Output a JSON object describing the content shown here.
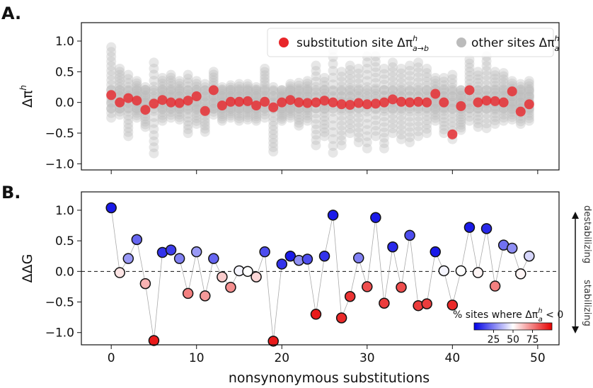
{
  "figure": {
    "panel_a_label": "A.",
    "panel_b_label": "B.",
    "xlabel": "nonsynonymous substitutions"
  },
  "chart_data": [
    {
      "type": "scatter",
      "panel": "A.",
      "ylabel": "Δπ^h",
      "ylim": [
        -1.1,
        1.3
      ],
      "xlim": [
        -3.5,
        52.5
      ],
      "yticks": [
        -1.0,
        -0.5,
        0.0,
        0.5,
        1.0
      ],
      "ytick_labels": [
        "−1.0",
        "−0.5",
        "0.0",
        "0.5",
        "1.0"
      ],
      "grid": false,
      "legend_placement": "top-right",
      "colors": {
        "substitution": "#e8262a",
        "other": "#bbbbbb"
      },
      "legend": [
        {
          "name": "substitution site Δπ^h_{a→b}",
          "text_main": "substitution site Δπ",
          "sup": "h",
          "sub": "a→b",
          "color": "#e8262a"
        },
        {
          "name": "other sites Δπ^h_a",
          "text_main": "other sites Δπ",
          "sup": "h",
          "sub": "a",
          "color": "#bbbbbb"
        }
      ],
      "series": [
        {
          "name": "substitution site Δπ^h_{a→b}",
          "x": [
            0,
            1,
            2,
            3,
            4,
            5,
            6,
            7,
            8,
            9,
            10,
            11,
            12,
            13,
            14,
            15,
            16,
            17,
            18,
            19,
            20,
            21,
            22,
            23,
            24,
            25,
            26,
            27,
            28,
            29,
            30,
            31,
            32,
            33,
            34,
            35,
            36,
            37,
            38,
            39,
            40,
            41,
            42,
            43,
            44,
            45,
            46,
            47,
            48,
            49
          ],
          "y": [
            0.12,
            0.0,
            0.07,
            0.03,
            -0.12,
            -0.02,
            0.04,
            0.0,
            -0.01,
            0.03,
            0.1,
            -0.14,
            0.2,
            -0.05,
            0.01,
            0.01,
            0.02,
            -0.05,
            0.01,
            -0.08,
            0.0,
            0.04,
            0.0,
            -0.01,
            0.0,
            0.03,
            0.0,
            -0.03,
            -0.04,
            -0.01,
            -0.03,
            -0.02,
            0.0,
            0.05,
            0.01,
            0.0,
            0.01,
            0.0,
            0.14,
            0.0,
            -0.52,
            -0.06,
            0.2,
            0.0,
            0.03,
            0.02,
            0.0,
            0.18,
            -0.15,
            -0.03
          ]
        },
        {
          "name": "other sites Δπ^h_a",
          "ranges_description": "per-substitution min/max of other-site values",
          "x": [
            0,
            1,
            2,
            3,
            4,
            5,
            6,
            7,
            8,
            9,
            10,
            11,
            12,
            13,
            14,
            15,
            16,
            17,
            18,
            19,
            20,
            21,
            22,
            23,
            24,
            25,
            26,
            27,
            28,
            29,
            30,
            31,
            32,
            33,
            34,
            35,
            36,
            37,
            38,
            39,
            40,
            41,
            42,
            43,
            44,
            45,
            46,
            47,
            48,
            49
          ],
          "ymin": [
            -0.25,
            -0.2,
            -0.55,
            -0.25,
            -0.4,
            -0.83,
            -0.3,
            -0.25,
            -0.28,
            -0.5,
            -0.35,
            -0.48,
            -0.2,
            -0.3,
            -0.25,
            -0.3,
            -0.28,
            -0.3,
            -0.25,
            -0.8,
            -0.3,
            -0.25,
            -0.38,
            -0.3,
            -0.7,
            -0.55,
            -0.82,
            -0.7,
            -0.5,
            -0.65,
            -0.75,
            -0.55,
            -0.75,
            -0.5,
            -0.6,
            -0.65,
            -0.55,
            -0.5,
            -0.3,
            -0.5,
            -0.6,
            -0.45,
            -0.3,
            -0.4,
            -0.42,
            -0.35,
            -0.3,
            -0.28,
            -0.35,
            -0.3
          ],
          "ymax": [
            0.9,
            0.55,
            0.45,
            0.35,
            0.25,
            0.65,
            0.4,
            0.45,
            0.35,
            0.45,
            0.35,
            0.3,
            0.5,
            0.25,
            0.28,
            0.3,
            0.3,
            0.25,
            0.55,
            0.25,
            0.2,
            0.3,
            0.32,
            0.35,
            0.6,
            0.4,
            0.85,
            0.5,
            0.6,
            0.55,
            0.75,
            0.75,
            0.55,
            0.65,
            0.55,
            0.6,
            0.65,
            0.55,
            0.4,
            0.4,
            0.45,
            0.2,
            0.7,
            0.5,
            0.75,
            0.5,
            0.48,
            0.35,
            0.3,
            0.35
          ]
        }
      ]
    },
    {
      "type": "scatter",
      "panel": "B.",
      "ylabel": "ΔΔG",
      "ylim": [
        -1.2,
        1.3
      ],
      "xlim": [
        -3.5,
        52.5
      ],
      "xticks": [
        0,
        10,
        20,
        30,
        40,
        50
      ],
      "xtick_labels": [
        "0",
        "10",
        "20",
        "30",
        "40",
        "50"
      ],
      "yticks": [
        -1.0,
        -0.5,
        0.0,
        0.5,
        1.0
      ],
      "ytick_labels": [
        "−1.0",
        "−0.5",
        "0.0",
        "0.5",
        "1.0"
      ],
      "grid": false,
      "reference_line": 0.0,
      "annotations": {
        "up": "destabilizing",
        "down": "stabilizing"
      },
      "colorbar": {
        "label": "% sites where Δπ^h_a < 0",
        "label_main": "% sites where Δπ",
        "label_sup": "h",
        "label_sub": "a",
        "label_tail": " < 0",
        "ticks": [
          25,
          50,
          75
        ],
        "tick_labels": [
          "25",
          "50",
          "75"
        ],
        "range": [
          0,
          100
        ],
        "colors": [
          "#0000e6",
          "#ffffff",
          "#e60000"
        ],
        "placement": "bottom-right"
      },
      "series": [
        {
          "name": "",
          "x": [
            0,
            1,
            2,
            3,
            4,
            5,
            6,
            7,
            8,
            9,
            10,
            11,
            12,
            13,
            14,
            15,
            16,
            17,
            18,
            19,
            20,
            21,
            22,
            23,
            24,
            25,
            26,
            27,
            28,
            29,
            30,
            31,
            32,
            33,
            34,
            35,
            36,
            37,
            38,
            39,
            40,
            41,
            42,
            43,
            44,
            45,
            46,
            47,
            48,
            49
          ],
          "y": [
            1.04,
            -0.02,
            0.21,
            0.52,
            -0.2,
            -1.13,
            0.31,
            0.35,
            0.21,
            -0.36,
            0.32,
            -0.4,
            0.21,
            -0.09,
            -0.26,
            0.01,
            0.0,
            -0.09,
            0.32,
            -1.14,
            0.12,
            0.25,
            0.18,
            0.2,
            -0.7,
            0.25,
            0.92,
            -0.76,
            -0.41,
            0.22,
            -0.25,
            0.88,
            -0.52,
            0.4,
            -0.26,
            0.59,
            -0.56,
            -0.53,
            0.32,
            0.01,
            -0.55,
            0.01,
            0.72,
            -0.02,
            0.7,
            -0.24,
            0.43,
            0.38,
            -0.04,
            0.25
          ],
          "pct_negative": [
            5,
            55,
            30,
            20,
            65,
            95,
            10,
            12,
            25,
            75,
            30,
            70,
            20,
            60,
            72,
            48,
            50,
            58,
            15,
            95,
            10,
            5,
            28,
            15,
            95,
            10,
            5,
            92,
            90,
            25,
            85,
            5,
            88,
            8,
            85,
            15,
            88,
            88,
            5,
            48,
            92,
            50,
            5,
            52,
            8,
            75,
            22,
            28,
            52,
            42
          ]
        }
      ]
    }
  ]
}
